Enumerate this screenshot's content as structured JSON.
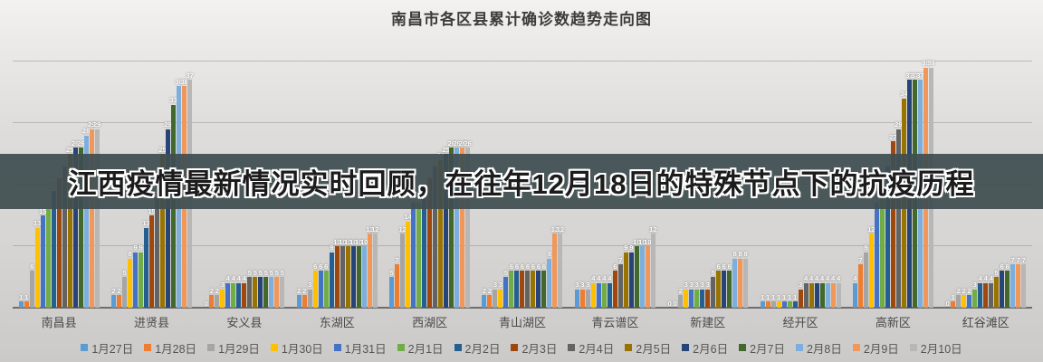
{
  "page_title": "南昌市各区县累计确诊数趋势走向图",
  "banner": {
    "text": "江西疫情最新情况实时回顾，在往年12月18日的特殊节点下的抗疫历程",
    "background_color": "#404d51",
    "text_color": "#1c1c1c",
    "outline_color": "#ffffff"
  },
  "chart_data": {
    "type": "bar",
    "title": "南昌市各区县累计确诊数趋势走向图",
    "xlabel": "",
    "ylabel": "",
    "ylim": [
      0,
      40
    ],
    "y_gridlines": [
      10,
      20,
      30,
      40
    ],
    "grid": "on",
    "data_labels": true,
    "data_label_color": "#ffffff",
    "legend_position": "bottom",
    "categories": [
      "南昌县",
      "进贤县",
      "安义县",
      "东湖区",
      "西湖区",
      "青山湖区",
      "青云谱区",
      "新建区",
      "经开区",
      "高新区",
      "红谷滩区"
    ],
    "series": [
      {
        "name": "1月27日",
        "color": "#5B9BD5",
        "values": [
          1,
          2,
          0,
          2,
          5,
          2,
          3,
          0,
          1,
          4,
          0
        ]
      },
      {
        "name": "1月28日",
        "color": "#ED7D31",
        "values": [
          1,
          2,
          2,
          2,
          7,
          2,
          3,
          0,
          1,
          7,
          1
        ]
      },
      {
        "name": "1月29日",
        "color": "#A5A5A5",
        "values": [
          6,
          5,
          2,
          3,
          12,
          3,
          3,
          2,
          1,
          9,
          2
        ]
      },
      {
        "name": "1月30日",
        "color": "#FFC000",
        "values": [
          13,
          8,
          3,
          6,
          14,
          3,
          4,
          3,
          1,
          12,
          2
        ]
      },
      {
        "name": "1月31日",
        "color": "#4472C4",
        "values": [
          15,
          9,
          4,
          6,
          17,
          5,
          4,
          3,
          1,
          17,
          2
        ]
      },
      {
        "name": "2月1日",
        "color": "#70AD47",
        "values": [
          16,
          9,
          4,
          6,
          17,
          6,
          4,
          3,
          1,
          20,
          3
        ]
      },
      {
        "name": "2月2日",
        "color": "#255E91",
        "values": [
          19,
          13,
          4,
          9,
          18,
          6,
          4,
          3,
          1,
          23,
          4
        ]
      },
      {
        "name": "2月3日",
        "color": "#9E480E",
        "values": [
          21,
          15,
          4,
          10,
          21,
          6,
          6,
          3,
          3,
          27,
          4
        ]
      },
      {
        "name": "2月4日",
        "color": "#636363",
        "values": [
          23,
          18,
          5,
          10,
          23,
          6,
          7,
          5,
          4,
          29,
          4
        ]
      },
      {
        "name": "2月5日",
        "color": "#997300",
        "values": [
          25,
          25,
          5,
          10,
          24,
          6,
          9,
          6,
          4,
          34,
          5
        ]
      },
      {
        "name": "2月6日",
        "color": "#264478",
        "values": [
          26,
          29,
          5,
          10,
          25,
          6,
          9,
          6,
          4,
          37,
          6
        ]
      },
      {
        "name": "2月7日",
        "color": "#43682B",
        "values": [
          26,
          33,
          5,
          10,
          26,
          6,
          10,
          6,
          4,
          37,
          6
        ]
      },
      {
        "name": "2月8日",
        "color": "#7CAFDD",
        "values": [
          28,
          36,
          5,
          10,
          26,
          8,
          10,
          8,
          4,
          37,
          7
        ]
      },
      {
        "name": "2月9日",
        "color": "#F1975A",
        "values": [
          29,
          36,
          5,
          12,
          26,
          12,
          10,
          8,
          4,
          39,
          7
        ]
      },
      {
        "name": "2月10日",
        "color": "#B7B7B7",
        "values": [
          29,
          37,
          5,
          12,
          26,
          12,
          12,
          8,
          4,
          39,
          7
        ]
      }
    ]
  }
}
